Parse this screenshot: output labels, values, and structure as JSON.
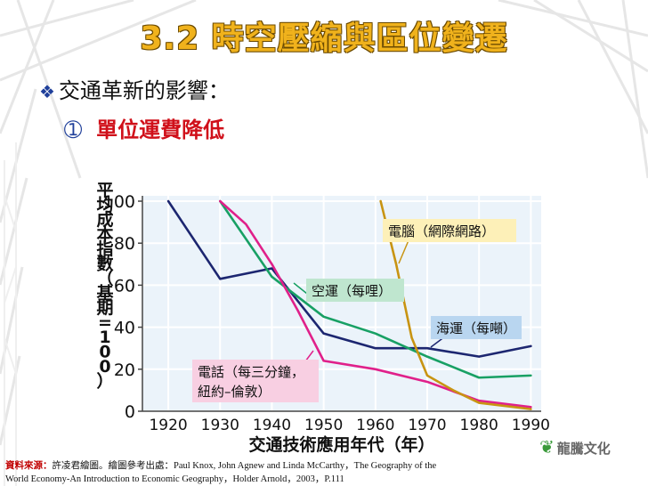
{
  "slide": {
    "title": "3.2 時空壓縮與區位變遷",
    "bullet_marker": "❖",
    "bullet": "交通革新的影響：",
    "sub_number": "",
    "sub_bullet": "單位運費降低"
  },
  "chart_data": {
    "type": "line",
    "title": "",
    "xlabel": "交通技術應用年代（年）",
    "ylabel": "平均成本指數（基期=100）",
    "xlim": [
      1915,
      1992
    ],
    "ylim": [
      0,
      100
    ],
    "x_ticks": [
      "1920",
      "1930",
      "1940",
      "1950",
      "1960",
      "1970",
      "1980",
      "1990"
    ],
    "y_ticks": [
      "0",
      "20",
      "40",
      "60",
      "80",
      "100"
    ],
    "grid": true,
    "series": [
      {
        "name": "海運（每噸）",
        "color": "#1c2670",
        "x": [
          1920,
          1930,
          1940,
          1950,
          1960,
          1970,
          1980,
          1990
        ],
        "y": [
          100,
          63,
          68,
          37,
          30,
          30,
          26,
          31
        ]
      },
      {
        "name": "空運（每哩）",
        "color": "#18a064",
        "x": [
          1930,
          1940,
          1950,
          1960,
          1970,
          1980,
          1990
        ],
        "y": [
          100,
          64,
          45,
          37,
          26,
          16,
          17
        ]
      },
      {
        "name": "電話（每三分鐘，紐約–倫敦）",
        "color": "#e0208a",
        "x": [
          1930,
          1935,
          1940,
          1945,
          1950,
          1960,
          1970,
          1980,
          1990
        ],
        "y": [
          100,
          89,
          70,
          48,
          24,
          20,
          14,
          5,
          2
        ]
      },
      {
        "name": "電腦（網際網路）",
        "color": "#c89412",
        "x": [
          1961,
          1964,
          1967,
          1970,
          1975,
          1980,
          1990
        ],
        "y": [
          100,
          70,
          35,
          17,
          10,
          4,
          1
        ]
      }
    ],
    "labels": {
      "computer": "電腦（網際網路）",
      "air": "空運（每哩）",
      "sea": "海運（每噸）",
      "phone_line1": "電話（每三分鐘，",
      "phone_line2": "紐約–倫敦）"
    }
  },
  "source": {
    "label": "資料來源：",
    "text_line1": "許凌君繪圖。繪圖參考出處：Paul Knox, John Agnew and Linda McCarthy，The Geography of the",
    "text_line2": "World Economy-An Introduction to Economic Geography，Holder Arnold，2003，P.111"
  },
  "logo": {
    "text": "龍騰文化",
    "mark": "❦"
  }
}
